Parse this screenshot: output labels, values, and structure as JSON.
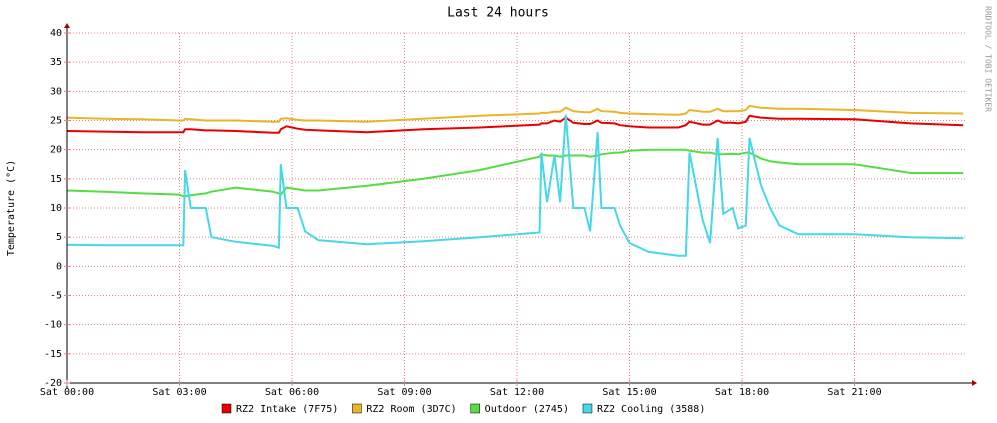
{
  "chart_data": {
    "type": "line",
    "title": "Last 24 hours",
    "y_label": "Temperature (°C)",
    "watermark": "RRDTOOL / TOBI OETIKER",
    "x": [
      0,
      1,
      2,
      3,
      3.1,
      3.15,
      3.3,
      3.7,
      3.85,
      4.5,
      5.5,
      5.65,
      5.7,
      5.85,
      6.15,
      6.35,
      6.7,
      8,
      9.5,
      11,
      12.6,
      12.65,
      12.8,
      13.0,
      13.15,
      13.3,
      13.5,
      13.8,
      13.95,
      14.15,
      14.25,
      14.6,
      14.75,
      15,
      15.5,
      16.3,
      16.5,
      16.6,
      16.95,
      17.15,
      17.35,
      17.5,
      17.75,
      17.9,
      18.1,
      18.2,
      18.5,
      18.75,
      19,
      19.5,
      21,
      22.5,
      23.9
    ],
    "series": [
      {
        "name": "RZ2 Intake (7F75)",
        "color": "#e80000",
        "values": [
          23.2,
          23.1,
          23,
          23,
          23,
          23.5,
          23.5,
          23.3,
          23.3,
          23.2,
          22.9,
          22.9,
          23.5,
          24,
          23.6,
          23.4,
          23.3,
          23,
          23.5,
          23.8,
          24.3,
          24.5,
          24.5,
          25,
          24.8,
          25.5,
          24.6,
          24.4,
          24.4,
          25,
          24.6,
          24.5,
          24.2,
          24,
          23.8,
          23.8,
          24.2,
          24.8,
          24.3,
          24.3,
          25,
          24.6,
          24.6,
          24.5,
          24.8,
          25.8,
          25.5,
          25.4,
          25.3,
          25.3,
          25.2,
          24.5,
          24.2
        ]
      },
      {
        "name": "RZ2 Room (3D7C)",
        "color": "#e8b428",
        "values": [
          25.5,
          25.3,
          25.2,
          25,
          25,
          25.3,
          25.2,
          25,
          25,
          25,
          24.8,
          24.8,
          25.3,
          25.4,
          25.1,
          25,
          25,
          24.8,
          25.3,
          25.8,
          26.2,
          26.3,
          26.3,
          26.5,
          26.5,
          27.2,
          26.6,
          26.4,
          26.4,
          27,
          26.6,
          26.5,
          26.3,
          26.2,
          26.1,
          26,
          26.2,
          26.8,
          26.5,
          26.5,
          27,
          26.6,
          26.6,
          26.6,
          26.8,
          27.5,
          27.2,
          27.1,
          27,
          27,
          26.8,
          26.3,
          26.2
        ]
      },
      {
        "name": "Outdoor (2745)",
        "color": "#55dd44",
        "values": [
          13,
          12.8,
          12.5,
          12.3,
          12,
          12,
          12.2,
          12.5,
          12.8,
          13.5,
          12.8,
          12.5,
          12.3,
          13.5,
          13.2,
          13,
          13,
          13.8,
          15,
          16.5,
          18.8,
          19.2,
          19,
          19,
          18.8,
          19,
          19,
          19,
          18.8,
          19,
          19.2,
          19.5,
          19.5,
          19.8,
          20,
          20,
          20,
          19.8,
          19.5,
          19.5,
          19.2,
          19.2,
          19.3,
          19.2,
          19.5,
          19.5,
          18.5,
          18,
          17.8,
          17.5,
          17.5,
          16,
          16
        ]
      },
      {
        "name": "RZ2 Cooling (3588)",
        "color": "#44d8e8",
        "values": [
          3.7,
          3.6,
          3.6,
          3.6,
          3.6,
          16.5,
          10,
          10,
          5,
          4.2,
          3.5,
          3.2,
          17.5,
          10,
          10,
          6,
          4.5,
          3.8,
          4.3,
          5,
          5.8,
          19.5,
          11,
          19,
          11,
          26,
          10,
          10,
          6,
          23,
          10,
          10,
          7,
          4,
          2.5,
          1.8,
          1.8,
          19.5,
          8,
          4,
          22,
          9,
          10,
          6.5,
          7,
          22,
          14,
          10,
          7,
          5.5,
          5.5,
          5,
          4.8
        ]
      }
    ],
    "xlim": [
      0,
      24
    ],
    "xticks": [
      {
        "value": 0,
        "label": "Sat 00:00"
      },
      {
        "value": 3,
        "label": "Sat 03:00"
      },
      {
        "value": 6,
        "label": "Sat 06:00"
      },
      {
        "value": 9,
        "label": "Sat 09:00"
      },
      {
        "value": 12,
        "label": "Sat 12:00"
      },
      {
        "value": 15,
        "label": "Sat 15:00"
      },
      {
        "value": 18,
        "label": "Sat 18:00"
      },
      {
        "value": 21,
        "label": "Sat 21:00"
      }
    ],
    "ylim": [
      -20,
      40
    ],
    "yticks": [
      -20,
      -15,
      -10,
      -5,
      0,
      5,
      10,
      15,
      20,
      25,
      30,
      35,
      40
    ],
    "grid": true
  }
}
